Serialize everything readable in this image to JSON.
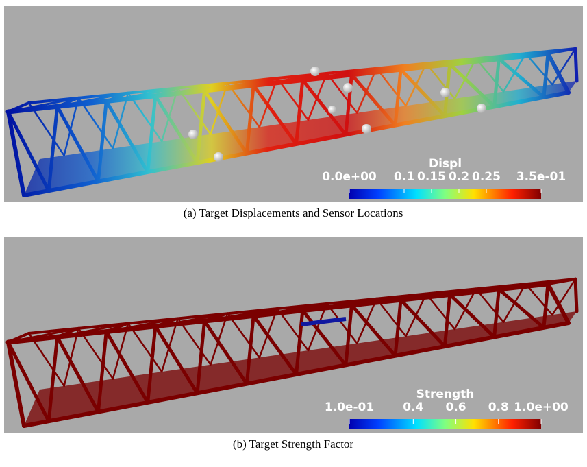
{
  "panels": [
    {
      "colorbar": {
        "title": "Displ",
        "ticks": [
          {
            "value": 0,
            "label": "0.0e+00"
          },
          0.1,
          0.15,
          0.2,
          0.25,
          {
            "value": 0.35,
            "label": "3.5e-01"
          }
        ]
      },
      "caption": "(a) Target Displacements and Sensor Locations"
    },
    {
      "colorbar": {
        "title": "Strength",
        "ticks": [
          {
            "value": 0.1,
            "label": "1.0e-01"
          },
          0.4,
          0.6,
          0.8,
          {
            "value": 1,
            "label": "1.0e+00"
          }
        ]
      },
      "caption": "(b) Target Strength Factor"
    }
  ]
}
